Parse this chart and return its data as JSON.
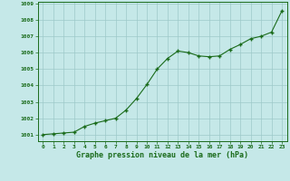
{
  "x": [
    0,
    1,
    2,
    3,
    4,
    5,
    6,
    7,
    8,
    9,
    10,
    11,
    12,
    13,
    14,
    15,
    16,
    17,
    18,
    19,
    20,
    21,
    22,
    23
  ],
  "y": [
    1001.0,
    1001.05,
    1001.1,
    1001.15,
    1001.5,
    1001.7,
    1001.85,
    1002.0,
    1002.5,
    1003.2,
    1004.05,
    1005.0,
    1005.65,
    1006.1,
    1006.0,
    1005.8,
    1005.75,
    1005.8,
    1006.2,
    1006.5,
    1006.85,
    1007.0,
    1007.25,
    1008.55
  ],
  "line_color": "#1a6b1a",
  "marker_color": "#1a6b1a",
  "bg_color": "#c5e8e8",
  "grid_color": "#9dc9c9",
  "xlabel": "Graphe pression niveau de la mer (hPa)",
  "xlabel_color": "#1a6b1a",
  "ylabel_ticks": [
    1001,
    1002,
    1003,
    1004,
    1005,
    1006,
    1007,
    1008,
    1009
  ],
  "xtick_labels": [
    "0",
    "1",
    "2",
    "3",
    "4",
    "5",
    "6",
    "7",
    "8",
    "9",
    "10",
    "11",
    "12",
    "13",
    "14",
    "15",
    "16",
    "17",
    "18",
    "19",
    "20",
    "21",
    "22",
    "23"
  ],
  "xlim": [
    -0.5,
    23.5
  ],
  "ylim": [
    1000.6,
    1009.1
  ]
}
